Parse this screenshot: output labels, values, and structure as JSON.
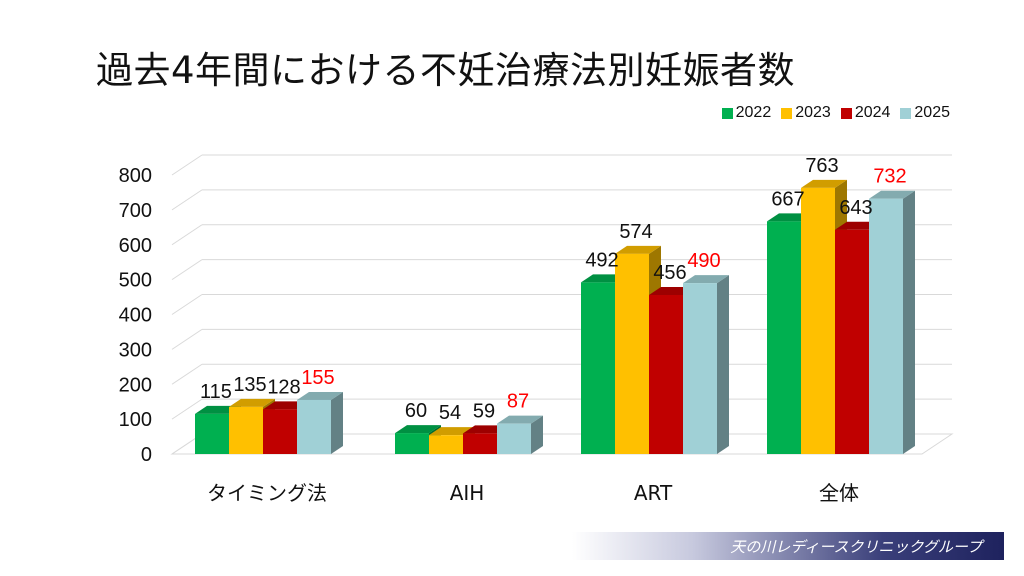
{
  "slide": {
    "title": "過去4年間における不妊治療法別妊娠者数",
    "footer": "天の川レディースクリニックグループ"
  },
  "colors": {
    "2022": "#00b050",
    "2023": "#ffc000",
    "2024": "#c00000",
    "2025": "#a0d0d6",
    "highlight_label": "#ff0000"
  },
  "chart_data": {
    "type": "bar",
    "title": "過去4年間における不妊治療法別妊娠者数",
    "categories": [
      "タイミング法",
      "AIH",
      "ART",
      "全体"
    ],
    "series": [
      {
        "name": "2022",
        "values": [
          115,
          60,
          492,
          667
        ]
      },
      {
        "name": "2023",
        "values": [
          135,
          54,
          574,
          763
        ]
      },
      {
        "name": "2024",
        "values": [
          128,
          59,
          456,
          643
        ]
      },
      {
        "name": "2025",
        "values": [
          155,
          87,
          490,
          732
        ]
      }
    ],
    "y_ticks": [
      0,
      100,
      200,
      300,
      400,
      500,
      600,
      700,
      800
    ],
    "ylim": [
      0,
      800
    ],
    "grid": true,
    "legend_position": "top-right",
    "style": "3d-clustered-column",
    "highlighted_series": "2025"
  }
}
